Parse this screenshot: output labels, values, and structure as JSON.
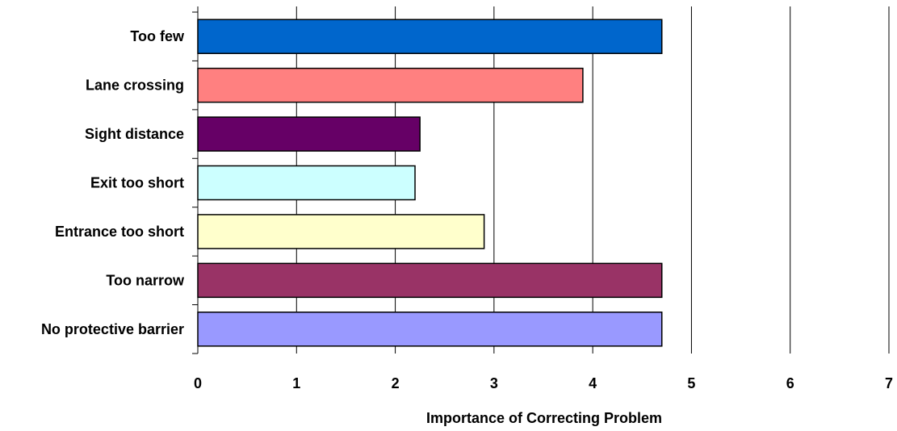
{
  "chart_data": {
    "type": "bar",
    "orientation": "horizontal",
    "categories": [
      "Too few",
      "Lane crossing",
      "Sight distance",
      "Exit too short",
      "Entrance too short",
      "Too narrow",
      "No protective barrier"
    ],
    "values": [
      4.7,
      3.9,
      2.25,
      2.2,
      2.9,
      4.7,
      4.7
    ],
    "bar_colors": [
      "#0066cc",
      "#ff8080",
      "#660066",
      "#ccffff",
      "#ffffcc",
      "#993366",
      "#9999ff"
    ],
    "title": "",
    "xlabel": "Importance of Correcting Problem",
    "ylabel": "",
    "xlim": [
      0,
      7
    ],
    "x_ticks": [
      "0",
      "1",
      "2",
      "3",
      "4",
      "5",
      "6",
      "7"
    ],
    "grid": "vertical gridlines at each integer",
    "legend": "none"
  }
}
